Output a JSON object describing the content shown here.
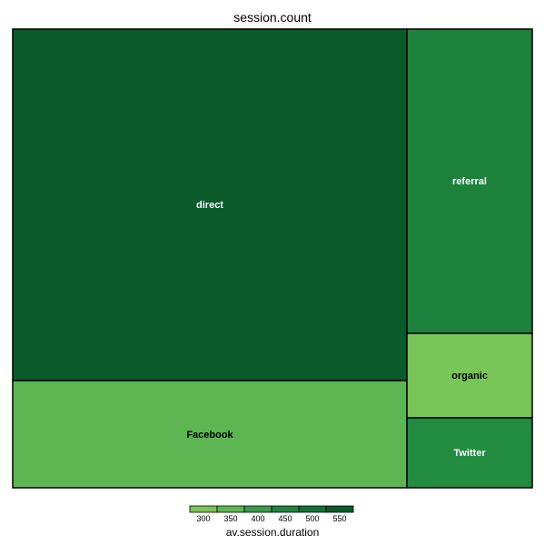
{
  "chart_data": {
    "type": "treemap",
    "title": "session.count",
    "size_variable": "session.count",
    "color_variable": "av.session.duration",
    "tiles": [
      {
        "name": "direct",
        "color": "#0b5a2b",
        "label_color": "#ffffff"
      },
      {
        "name": "Facebook",
        "color": "#5db652",
        "label_color": "#000000"
      },
      {
        "name": "referral",
        "color": "#1c823c",
        "label_color": "#ffffff"
      },
      {
        "name": "organic",
        "color": "#78c558",
        "label_color": "#000000"
      },
      {
        "name": "Twitter",
        "color": "#218b40",
        "label_color": "#ffffff"
      }
    ],
    "legend": {
      "title": "av.session.duration",
      "ticks": [
        "300",
        "350",
        "400",
        "450",
        "500",
        "550"
      ],
      "colors": [
        "#78c558",
        "#5db652",
        "#3e9b47",
        "#21843d",
        "#157034",
        "#0b5a2b"
      ]
    }
  }
}
